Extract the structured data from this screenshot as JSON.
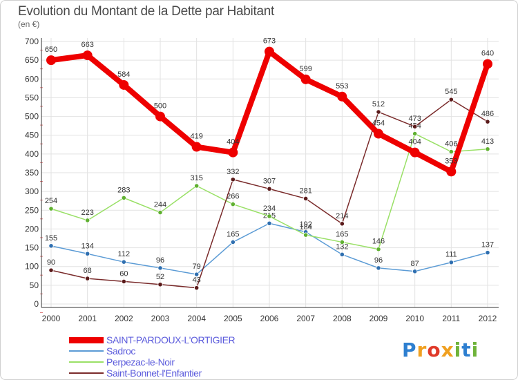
{
  "header": {
    "title": "Evolution du Montant de la Dette par Habitant",
    "subtitle": "(en €)"
  },
  "logo": {
    "text": "Proxiti",
    "letters": [
      "P",
      "r",
      "o",
      "x",
      "i",
      "t",
      "i"
    ],
    "colors": [
      "#2d7fd0",
      "#f0a020",
      "#e03a2a",
      "#f0a020",
      "#6fb33a",
      "#2d7fd0",
      "#6fb33a"
    ]
  },
  "chart_data": {
    "type": "line",
    "x": [
      "2000",
      "2001",
      "2002",
      "2003",
      "2004",
      "2005",
      "2006",
      "2007",
      "2008",
      "2009",
      "2010",
      "2011",
      "2012"
    ],
    "ylim": [
      0,
      700
    ],
    "yticks": [
      "0",
      "50",
      "100",
      "150",
      "200",
      "250",
      "300",
      "350",
      "400",
      "450",
      "500",
      "550",
      "600",
      "650",
      "700"
    ],
    "grid": true,
    "series": [
      {
        "name": "SAINT-PARDOUX-L'ORTIGIER",
        "color": "#ee0000",
        "thick": true,
        "values": [
          650,
          663,
          584,
          500,
          419,
          404,
          673,
          599,
          553,
          454,
          404,
          353,
          640
        ]
      },
      {
        "name": "Sadroc",
        "color": "#5b9bd5",
        "thick": false,
        "values": [
          155,
          134,
          112,
          96,
          79,
          165,
          215,
          192,
          132,
          96,
          87,
          111,
          137
        ]
      },
      {
        "name": "Perpezac-le-Noir",
        "color": "#99e066",
        "thick": false,
        "values": [
          254,
          223,
          283,
          244,
          315,
          266,
          234,
          184,
          165,
          146,
          454,
          406,
          413
        ]
      },
      {
        "name": "Saint-Bonnet-l'Enfantier",
        "color": "#7a2b2b",
        "thick": false,
        "values": [
          90,
          68,
          60,
          52,
          43,
          332,
          307,
          281,
          214,
          512,
          473,
          545,
          486
        ]
      }
    ]
  }
}
